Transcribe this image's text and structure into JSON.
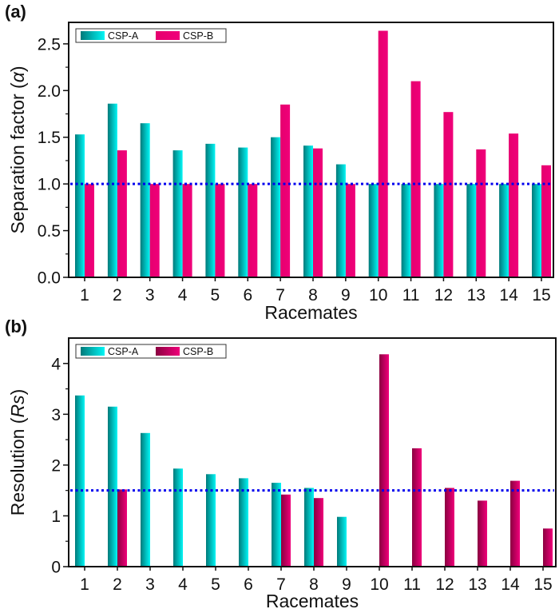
{
  "chart_data": [
    {
      "panel": "(a)",
      "type": "bar",
      "title": "",
      "xlabel": "Racemates",
      "ylabel": "Separation factor (α)",
      "ylabel_parts": [
        "Separation factor (",
        "α",
        ")"
      ],
      "categories": [
        "1",
        "2",
        "3",
        "4",
        "5",
        "6",
        "7",
        "8",
        "9",
        "10",
        "11",
        "12",
        "13",
        "14",
        "15"
      ],
      "ylim": [
        0,
        2.73
      ],
      "yticks": [
        0.0,
        0.5,
        1.0,
        1.5,
        2.0,
        2.5
      ],
      "ytick_labels": [
        "0.0",
        "0.5",
        "1.0",
        "1.5",
        "2.0",
        "2.5"
      ],
      "reference_line": {
        "value": 1.0,
        "style": "dotted",
        "color": "#0000ee"
      },
      "legend_position": "top-left",
      "grid": false,
      "series": [
        {
          "name": "CSP-A",
          "color_dark": "#007a7a",
          "color_light": "#00f5f5",
          "values": [
            1.53,
            1.86,
            1.65,
            1.36,
            1.43,
            1.39,
            1.5,
            1.41,
            1.21,
            1.0,
            1.0,
            1.0,
            1.0,
            1.0,
            1.0
          ]
        },
        {
          "name": "CSP-B",
          "color_dark": "#e6006e",
          "color_light": "#f0007a",
          "values": [
            1.0,
            1.36,
            1.0,
            1.0,
            1.0,
            1.0,
            1.85,
            1.38,
            1.0,
            2.64,
            2.1,
            1.77,
            1.37,
            1.54,
            1.2
          ]
        }
      ]
    },
    {
      "panel": "(b)",
      "type": "bar",
      "title": "",
      "xlabel": "Racemates",
      "ylabel": "Resolution (Rs)",
      "ylabel_parts": [
        "Resolution (",
        "Rs",
        ")"
      ],
      "categories": [
        "1",
        "2",
        "3",
        "4",
        "5",
        "6",
        "7",
        "8",
        "9",
        "10",
        "11",
        "12",
        "13",
        "14",
        "15"
      ],
      "ylim": [
        0,
        4.5
      ],
      "yticks": [
        0,
        1,
        2,
        3,
        4
      ],
      "ytick_labels": [
        "0",
        "1",
        "2",
        "3",
        "4"
      ],
      "reference_line": {
        "value": 1.5,
        "style": "dotted",
        "color": "#0000ee"
      },
      "legend_position": "top-left",
      "grid": false,
      "series": [
        {
          "name": "CSP-A",
          "color_dark": "#007a7a",
          "color_light": "#00f5f5",
          "values": [
            3.37,
            3.15,
            2.63,
            1.93,
            1.82,
            1.74,
            1.65,
            1.55,
            0.98,
            0,
            0,
            0,
            0,
            0,
            0
          ]
        },
        {
          "name": "CSP-B",
          "color_dark": "#8a0040",
          "color_light": "#f0007a",
          "values": [
            0,
            1.52,
            0,
            0,
            0,
            0,
            1.42,
            1.35,
            0,
            4.18,
            2.33,
            1.55,
            1.3,
            1.69,
            0.75
          ]
        }
      ]
    }
  ]
}
